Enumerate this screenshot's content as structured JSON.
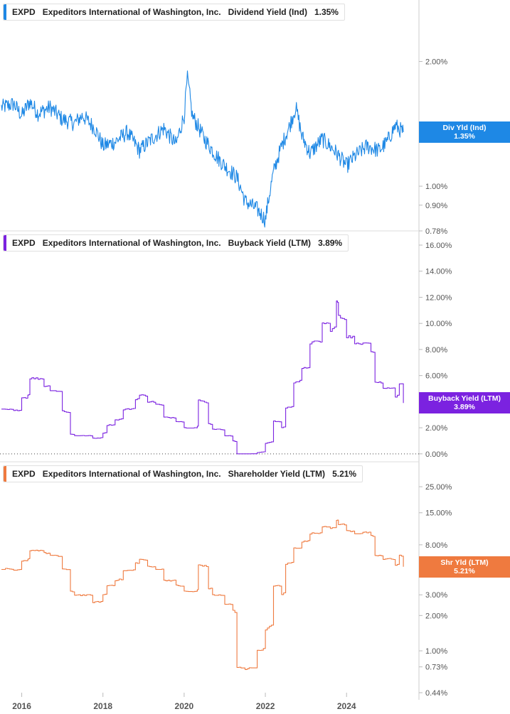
{
  "colors": {
    "dividend": "#1e88e5",
    "buyback": "#7b22e0",
    "shareholder": "#ef7a3f",
    "axis": "#555555",
    "divider": "#dddddd"
  },
  "x_axis": {
    "ticks": [
      "2016",
      "2018",
      "2020",
      "2022",
      "2024"
    ]
  },
  "chart_data": [
    {
      "type": "line",
      "legend": {
        "ticker": "EXPD",
        "company": "Expeditors International of Washington, Inc.",
        "metric": "Dividend Yield (Ind)",
        "value": "1.35%"
      },
      "flag": {
        "line1": "Div Yld (Ind)",
        "line2": "1.35%"
      },
      "y_scale": "log",
      "ylim": [
        0.78,
        2.5
      ],
      "yticks": [
        {
          "value": 2.0,
          "label": "2.00%"
        },
        {
          "value": 1.0,
          "label": "1.00%"
        },
        {
          "value": 0.9,
          "label": "0.90%"
        },
        {
          "value": 0.78,
          "label": "0.78%"
        }
      ],
      "series": [
        {
          "x": [
            2015.5,
            2015.8,
            2016.0,
            2016.2,
            2016.4,
            2016.7,
            2017.0,
            2017.3,
            2017.5,
            2017.8,
            2018.0,
            2018.3,
            2018.6,
            2018.9,
            2019.2,
            2019.5,
            2019.8,
            2020.0,
            2020.08,
            2020.2,
            2020.5,
            2020.8,
            2021.0,
            2021.3,
            2021.5,
            2021.8,
            2022.0,
            2022.2,
            2022.4,
            2022.6,
            2022.75,
            2022.9,
            2023.1,
            2023.4,
            2023.7,
            2024.0,
            2024.2,
            2024.5,
            2024.8,
            2025.0,
            2025.2,
            2025.4
          ],
          "values": [
            1.55,
            1.58,
            1.48,
            1.6,
            1.5,
            1.55,
            1.45,
            1.42,
            1.48,
            1.38,
            1.25,
            1.28,
            1.35,
            1.22,
            1.3,
            1.38,
            1.26,
            1.48,
            1.82,
            1.48,
            1.3,
            1.18,
            1.12,
            1.05,
            0.92,
            0.88,
            0.83,
            1.08,
            1.25,
            1.4,
            1.55,
            1.32,
            1.2,
            1.3,
            1.22,
            1.12,
            1.18,
            1.25,
            1.22,
            1.28,
            1.4,
            1.35
          ]
        }
      ]
    },
    {
      "type": "line",
      "legend": {
        "ticker": "EXPD",
        "company": "Expeditors International of Washington, Inc.",
        "metric": "Buyback Yield (LTM)",
        "value": "3.89%"
      },
      "flag": {
        "line1": "Buyback Yield (LTM)",
        "line2": "3.89%"
      },
      "y_scale": "linear",
      "ylim": [
        -0.5,
        16.0
      ],
      "yticks": [
        {
          "value": 16,
          "label": "16.00%"
        },
        {
          "value": 14,
          "label": "14.00%"
        },
        {
          "value": 12,
          "label": "12.00%"
        },
        {
          "value": 10,
          "label": "10.00%"
        },
        {
          "value": 8,
          "label": "8.00%"
        },
        {
          "value": 6,
          "label": "6.00%"
        },
        {
          "value": 2,
          "label": "2.00%"
        },
        {
          "value": 0,
          "label": "0.00%"
        }
      ],
      "zero_line": true,
      "series": [
        {
          "x": [
            2015.5,
            2015.8,
            2016.0,
            2016.15,
            2016.2,
            2016.6,
            2016.7,
            2017.0,
            2017.2,
            2017.3,
            2017.8,
            2018.0,
            2018.1,
            2018.3,
            2018.5,
            2018.8,
            2018.9,
            2019.1,
            2019.3,
            2019.5,
            2019.8,
            2020.0,
            2020.3,
            2020.35,
            2020.6,
            2020.7,
            2021.0,
            2021.2,
            2021.3,
            2021.5,
            2021.8,
            2022.0,
            2022.2,
            2022.4,
            2022.5,
            2022.7,
            2022.9,
            2023.1,
            2023.4,
            2023.6,
            2023.75,
            2023.8,
            2024.0,
            2024.2,
            2024.4,
            2024.6,
            2024.7,
            2024.9,
            2025.0,
            2025.2,
            2025.3,
            2025.4
          ],
          "values": [
            3.4,
            3.3,
            4.3,
            4.5,
            5.8,
            5.2,
            4.9,
            3.3,
            1.5,
            1.4,
            1.2,
            1.6,
            2.2,
            2.6,
            3.4,
            4.2,
            4.5,
            4.0,
            3.8,
            2.8,
            2.5,
            2.0,
            2.0,
            4.1,
            2.3,
            1.9,
            1.4,
            1.0,
            0.0,
            0.0,
            0.1,
            0.8,
            2.5,
            2.0,
            3.5,
            5.5,
            6.5,
            8.5,
            10.0,
            9.5,
            11.7,
            10.5,
            9.0,
            8.4,
            8.6,
            7.9,
            5.5,
            5.0,
            5.1,
            4.4,
            5.4,
            3.9
          ]
        }
      ]
    },
    {
      "type": "line",
      "legend": {
        "ticker": "EXPD",
        "company": "Expeditors International of Washington, Inc.",
        "metric": "Shareholder Yield (LTM)",
        "value": "5.21%"
      },
      "flag": {
        "line1": "Shr Yld (LTM)",
        "line2": "5.21%"
      },
      "y_scale": "log",
      "ylim": [
        0.44,
        30.0
      ],
      "yticks": [
        {
          "value": 25,
          "label": "25.00%"
        },
        {
          "value": 15,
          "label": "15.00%"
        },
        {
          "value": 8,
          "label": "8.00%"
        },
        {
          "value": 3,
          "label": "3.00%"
        },
        {
          "value": 2,
          "label": "2.00%"
        },
        {
          "value": 1,
          "label": "1.00%"
        },
        {
          "value": 0.73,
          "label": "0.73%"
        },
        {
          "value": 0.44,
          "label": "0.44%"
        }
      ],
      "series": [
        {
          "x": [
            2015.5,
            2015.8,
            2016.0,
            2016.15,
            2016.2,
            2016.6,
            2016.7,
            2017.0,
            2017.2,
            2017.3,
            2017.8,
            2018.0,
            2018.1,
            2018.3,
            2018.5,
            2018.8,
            2018.9,
            2019.1,
            2019.3,
            2019.5,
            2019.8,
            2020.0,
            2020.3,
            2020.35,
            2020.6,
            2020.7,
            2021.0,
            2021.2,
            2021.3,
            2021.5,
            2021.8,
            2022.0,
            2022.2,
            2022.4,
            2022.5,
            2022.7,
            2022.9,
            2023.1,
            2023.4,
            2023.6,
            2023.75,
            2023.8,
            2024.0,
            2024.2,
            2024.4,
            2024.6,
            2024.7,
            2024.9,
            2025.0,
            2025.2,
            2025.3,
            2025.4
          ],
          "values": [
            5.0,
            4.8,
            5.8,
            6.0,
            7.2,
            6.8,
            6.5,
            5.0,
            3.2,
            3.0,
            2.6,
            3.0,
            3.6,
            4.0,
            4.8,
            5.6,
            6.0,
            5.2,
            5.0,
            4.0,
            3.6,
            3.2,
            3.2,
            5.4,
            3.4,
            3.0,
            2.5,
            2.2,
            0.72,
            0.7,
            1.0,
            1.5,
            3.6,
            3.0,
            5.5,
            7.5,
            8.5,
            10.0,
            11.5,
            11.0,
            13.0,
            12.0,
            10.5,
            10.0,
            10.2,
            9.5,
            6.5,
            6.0,
            6.1,
            5.4,
            6.5,
            5.2
          ]
        }
      ]
    }
  ]
}
